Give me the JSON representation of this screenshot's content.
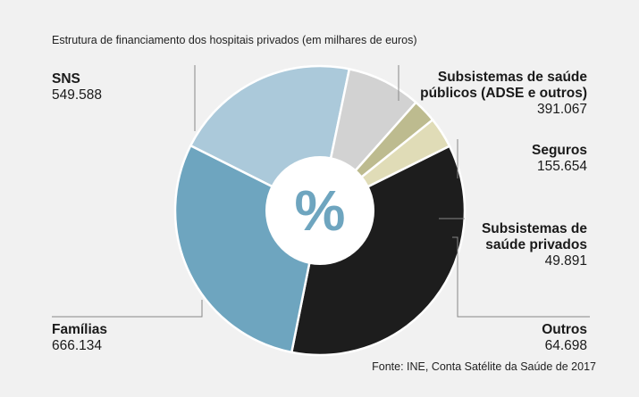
{
  "title": "Estrutura de financiamento dos hospitais privados (em milhares de euros)",
  "source": "Fonte: INE, Conta Satélite da Saúde de 2017",
  "center_symbol": "%",
  "chart_data": {
    "type": "pie",
    "title": "Estrutura de financiamento dos hospitais privados (em milhares de euros)",
    "slices": [
      {
        "label": "Subsistemas de saúde públicos (ADSE e outros)",
        "value": 391067,
        "display": "391.067",
        "color": "#abc9da"
      },
      {
        "label": "Seguros",
        "value": 155654,
        "display": "155.654",
        "color": "#d2d2d2"
      },
      {
        "label": "Subsistemas de saúde privados",
        "value": 49891,
        "display": "49.891",
        "color": "#bdbb8f"
      },
      {
        "label": "Outros",
        "value": 64698,
        "display": "64.698",
        "color": "#e0dcb7"
      },
      {
        "label": "Famílias",
        "value": 666134,
        "display": "666.134",
        "color": "#1d1d1d"
      },
      {
        "label": "SNS",
        "value": 549588,
        "display": "549.588",
        "color": "#6ea5bf"
      }
    ]
  },
  "labels": {
    "sns": {
      "name": "SNS",
      "value": "549.588"
    },
    "publicos": {
      "name1": "Subsistemas de saúde",
      "name2": "públicos (ADSE e outros)",
      "value": "391.067"
    },
    "seguros": {
      "name": "Seguros",
      "value": "155.654"
    },
    "privados": {
      "name1": "Subsistemas de",
      "name2": "saúde privados",
      "value": "49.891"
    },
    "familias": {
      "name": "Famílias",
      "value": "666.134"
    },
    "outros": {
      "name": "Outros",
      "value": "64.698"
    }
  },
  "colors": {
    "background": "#f1f1f1",
    "leader_line": "#888888"
  }
}
